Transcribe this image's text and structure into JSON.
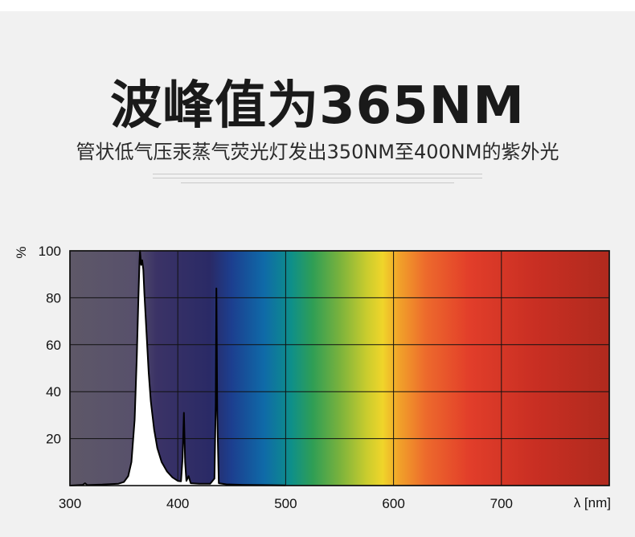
{
  "title": "波峰值为365NM",
  "subtitle": "管状低气压汞蒸气荧光灯发出350NM至400NM的紫外光",
  "chart_data": {
    "type": "line",
    "ylabel": "%",
    "xlabel": "λ [nm]",
    "xlim": [
      300,
      800
    ],
    "ylim": [
      0,
      100
    ],
    "x_ticks": [
      300,
      400,
      500,
      600,
      700
    ],
    "y_ticks": [
      20,
      40,
      60,
      80,
      100
    ],
    "grid": true,
    "background": "visible-spectrum gradient",
    "series": [
      {
        "points": [
          [
            300,
            0
          ],
          [
            312,
            0.3
          ],
          [
            314,
            1
          ],
          [
            316,
            0.2
          ],
          [
            330,
            0.4
          ],
          [
            345,
            0.8
          ],
          [
            350,
            1.5
          ],
          [
            354,
            4
          ],
          [
            357,
            10
          ],
          [
            360,
            28
          ],
          [
            362,
            55
          ],
          [
            363.5,
            80
          ],
          [
            364.5,
            96
          ],
          [
            365,
            100
          ],
          [
            365.5,
            97
          ],
          [
            366,
            94
          ],
          [
            367,
            96
          ],
          [
            368,
            92
          ],
          [
            369,
            82
          ],
          [
            371,
            65
          ],
          [
            373,
            48
          ],
          [
            375,
            36
          ],
          [
            378,
            24
          ],
          [
            381,
            16
          ],
          [
            385,
            10
          ],
          [
            390,
            6
          ],
          [
            395,
            3.5
          ],
          [
            400,
            2
          ],
          [
            403,
            1.8
          ],
          [
            404.5,
            12
          ],
          [
            405.7,
            31
          ],
          [
            406.8,
            10
          ],
          [
            408,
            2
          ],
          [
            410,
            4
          ],
          [
            412,
            1
          ],
          [
            420,
            0.8
          ],
          [
            430,
            0.8
          ],
          [
            434,
            3
          ],
          [
            435.2,
            35
          ],
          [
            435.8,
            84
          ],
          [
            436.6,
            30
          ],
          [
            438,
            1
          ],
          [
            445,
            0.5
          ],
          [
            460,
            0.3
          ],
          [
            480,
            0.2
          ],
          [
            500,
            0.1
          ]
        ]
      }
    ]
  }
}
